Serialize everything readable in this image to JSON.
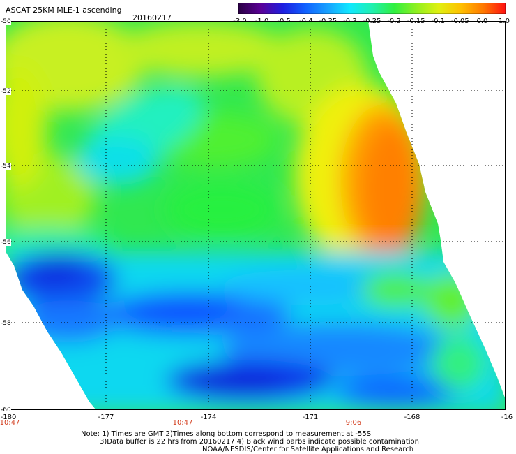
{
  "title": "ASCAT 25KM MLE-1 ascending",
  "date": "20160217",
  "colorbar": {
    "labels": [
      "-3.0",
      "-1.0",
      "-0.5",
      "-0.4",
      "-0.35",
      "-0.3",
      "-0.25",
      "-0.2",
      "-0.15",
      "-0.1",
      "-0.05",
      "0.0",
      "1.0"
    ],
    "colors": [
      "#2a0044",
      "#5a0096",
      "#1e1ee0",
      "#1060ff",
      "#18a0ff",
      "#10e8ff",
      "#20f0b0",
      "#30f040",
      "#90f020",
      "#e0f010",
      "#ffc000",
      "#ff7800",
      "#ff1010"
    ]
  },
  "lat_labels": [
    "-50",
    "-52",
    "-54",
    "-56",
    "-58",
    "-60"
  ],
  "lon_labels": [
    "-180",
    "-177",
    "-174",
    "-171",
    "-168",
    "-16"
  ],
  "time_labels": [
    "10:47",
    "10:47",
    "9:06"
  ],
  "note": {
    "line1": "Note: 1) Times are GMT 2)Times along bottom correspond to measurement at -55S",
    "line2": "3)Data buffer is 22 hrs from 20160217 4) Black wind barbs indicate possible contamination",
    "line3": "NOAA/NESDIS/Center for Satellite Applications and Research"
  }
}
